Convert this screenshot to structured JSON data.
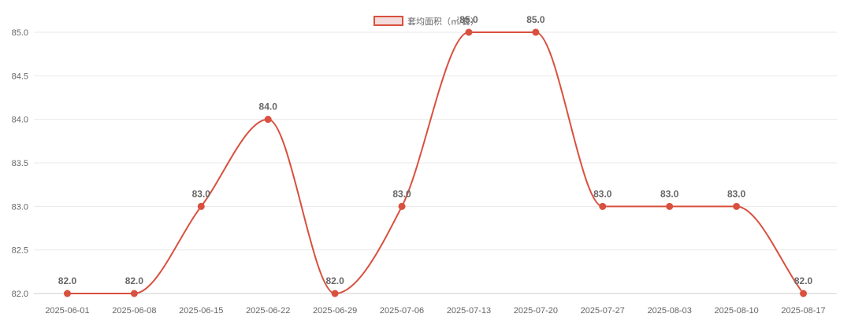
{
  "chart_data": {
    "type": "line",
    "categories": [
      "2025-06-01",
      "2025-06-08",
      "2025-06-15",
      "2025-06-22",
      "2025-06-29",
      "2025-07-06",
      "2025-07-13",
      "2025-07-20",
      "2025-07-27",
      "2025-08-03",
      "2025-08-10",
      "2025-08-17"
    ],
    "series": [
      {
        "name": "套均面积（㎡/套）",
        "values": [
          82.0,
          82.0,
          83.0,
          84.0,
          82.0,
          83.0,
          85.0,
          85.0,
          83.0,
          83.0,
          83.0,
          82.0
        ],
        "labels": [
          "82.0",
          "82.0",
          "83.0",
          "84.0",
          "82.0",
          "83.0",
          "85.0",
          "85.0",
          "83.0",
          "83.0",
          "83.0",
          "82.0"
        ]
      }
    ],
    "y_ticks": [
      "82.0",
      "82.5",
      "83.0",
      "83.5",
      "84.0",
      "84.5",
      "85.0"
    ],
    "ylim": [
      82,
      85
    ],
    "grid": true,
    "legend_position": "top-center",
    "smooth": true,
    "colors": {
      "line": "#d9503f",
      "legend_fill": "#f3dcdc",
      "grid": "#e8e8e8",
      "axis": "#cccccc"
    }
  }
}
